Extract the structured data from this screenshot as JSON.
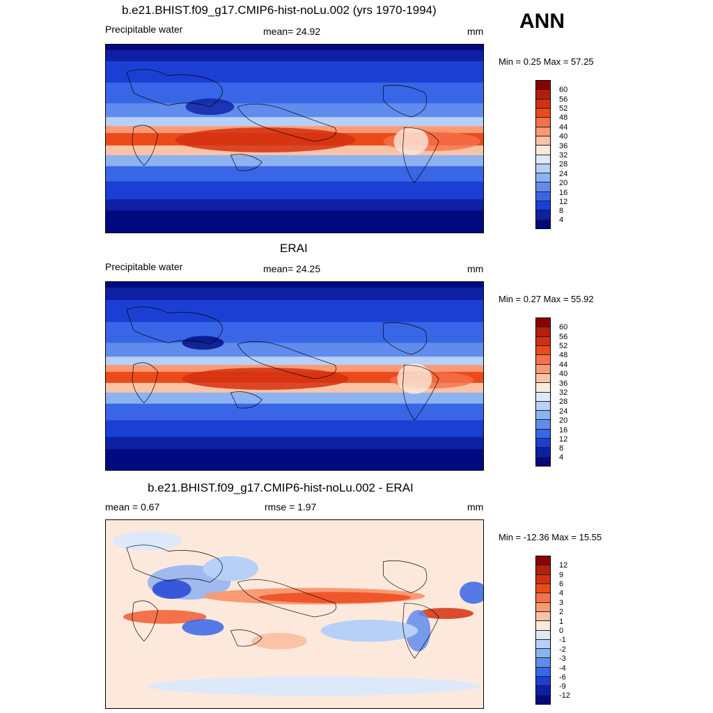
{
  "season": "ANN",
  "panels": [
    {
      "title": "b.e21.BHIST.f09_g17.CMIP6-hist-noLu.002 (yrs 1970-1994)",
      "left_label": "Precipitable water",
      "center_label": "mean=  24.92",
      "units": "mm",
      "minmax": "Min =   0.25 Max =  57.25"
    },
    {
      "title": "ERAI",
      "left_label": "Precipitable water",
      "center_label": "mean=  24.25",
      "units": "mm",
      "minmax": "Min =   0.27 Max =  55.92"
    },
    {
      "title": "b.e21.BHIST.f09_g17.CMIP6-hist-noLu.002 - ERAI",
      "left_label": "mean =   0.67",
      "center_label": "rmse =   1.97",
      "units": "mm",
      "minmax": "Min = -12.36 Max =  15.55"
    }
  ],
  "colorbars": {
    "field": {
      "labels": [
        "60",
        "56",
        "52",
        "48",
        "44",
        "40",
        "36",
        "32",
        "28",
        "24",
        "20",
        "16",
        "12",
        "8",
        "4"
      ],
      "colors": [
        "#8b0000",
        "#b2200c",
        "#d3300f",
        "#ed4a1c",
        "#f5714a",
        "#f99a74",
        "#fbc3a5",
        "#fde9dc",
        "#dde9fb",
        "#b7d0f7",
        "#8db2f2",
        "#5f8ced",
        "#3866e6",
        "#1c3fd3",
        "#0d1fa3",
        "#000a80"
      ]
    },
    "diff": {
      "labels": [
        "12",
        "9",
        "6",
        "4",
        "3",
        "2",
        "1",
        "0",
        "-1",
        "-2",
        "-3",
        "-4",
        "-6",
        "-9",
        "-12"
      ],
      "colors": [
        "#8b0000",
        "#b2200c",
        "#d3300f",
        "#ed4a1c",
        "#f5714a",
        "#f99a74",
        "#fbc3a5",
        "#fde9dc",
        "#dde9fb",
        "#b7d0f7",
        "#8db2f2",
        "#5f8ced",
        "#3866e6",
        "#1c3fd3",
        "#0d1fa3",
        "#000a80"
      ]
    }
  }
}
